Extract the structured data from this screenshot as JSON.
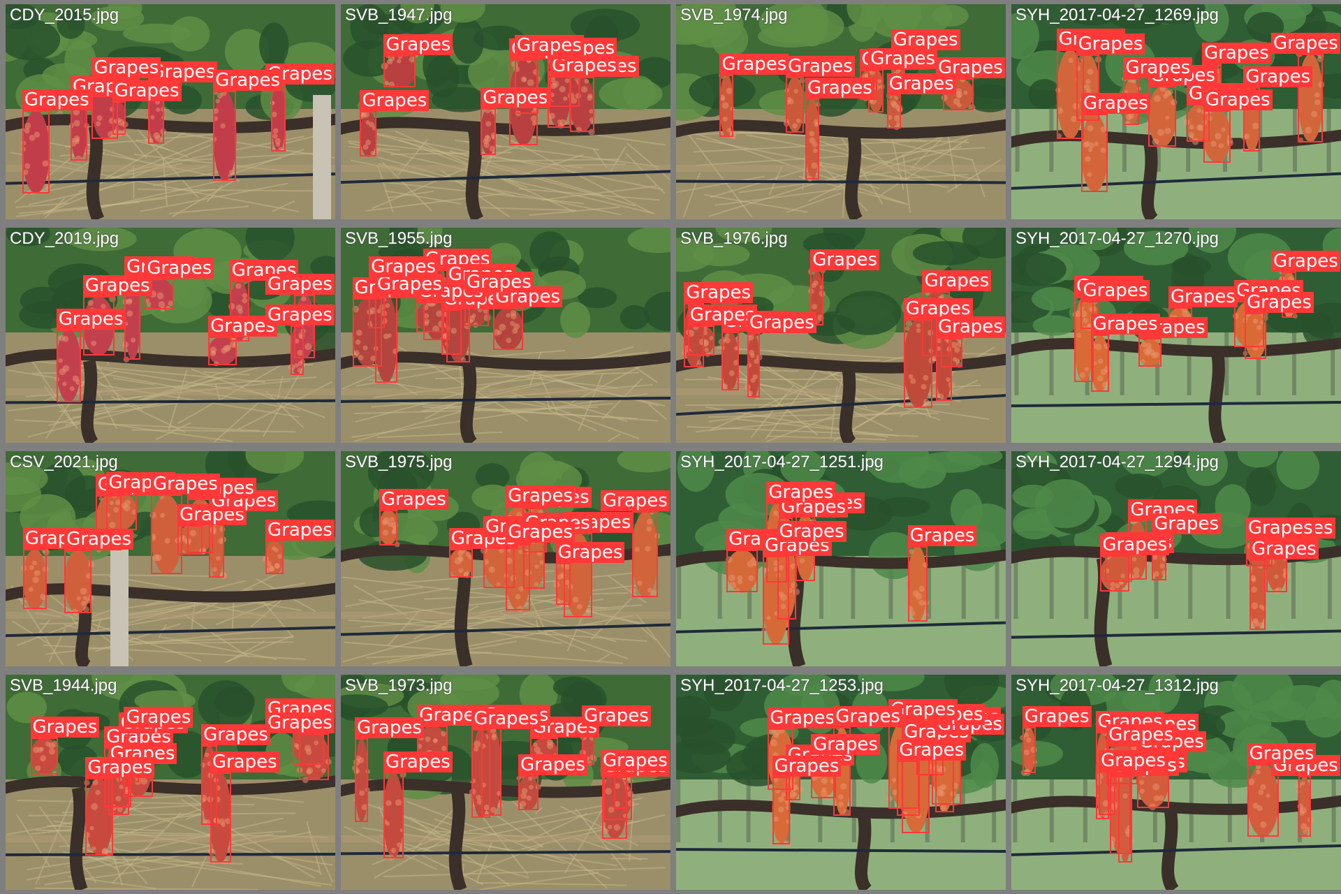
{
  "mosaic": {
    "class_label": "Grapes",
    "box_color": "#ff3838",
    "label_text_color": "#ffffff",
    "background": "#7f7f7f",
    "tiles": [
      {
        "filename": "CDY_2015.jpg",
        "scene": "support-post",
        "fruit_color": "#c23d4a"
      },
      {
        "filename": "SVB_1947.jpg",
        "scene": "vine-row",
        "fruit_color": "#b94040"
      },
      {
        "filename": "SVB_1974.jpg",
        "scene": "vine-row",
        "fruit_color": "#c85a3a"
      },
      {
        "filename": "SYH_2017-04-27_1269.jpg",
        "scene": "green-rows",
        "fruit_color": "#d2663a"
      },
      {
        "filename": "CDY_2019.jpg",
        "scene": "vine-row",
        "fruit_color": "#c2404e"
      },
      {
        "filename": "SVB_1955.jpg",
        "scene": "vine-row",
        "fruit_color": "#b3443e"
      },
      {
        "filename": "SVB_1976.jpg",
        "scene": "vine-row",
        "fruit_color": "#c04a3a"
      },
      {
        "filename": "SYH_2017-04-27_1270.jpg",
        "scene": "green-rows",
        "fruit_color": "#d96a36"
      },
      {
        "filename": "CSV_2021.jpg",
        "scene": "support-post",
        "fruit_color": "#d0603c"
      },
      {
        "filename": "SVB_1975.jpg",
        "scene": "vine-row",
        "fruit_color": "#d1643a"
      },
      {
        "filename": "SYH_2017-04-27_1251.jpg",
        "scene": "green-rows",
        "fruit_color": "#d56a38"
      },
      {
        "filename": "SYH_2017-04-27_1294.jpg",
        "scene": "green-rows",
        "fruit_color": "#cf5a3a"
      },
      {
        "filename": "SVB_1944.jpg",
        "scene": "vine-row",
        "fruit_color": "#c84a3e"
      },
      {
        "filename": "SVB_1973.jpg",
        "scene": "vine-row",
        "fruit_color": "#c24a3e"
      },
      {
        "filename": "SYH_2017-04-27_1253.jpg",
        "scene": "green-rows",
        "fruit_color": "#d86a38"
      },
      {
        "filename": "SYH_2017-04-27_1312.jpg",
        "scene": "green-rows",
        "fruit_color": "#d25c3c"
      }
    ]
  }
}
